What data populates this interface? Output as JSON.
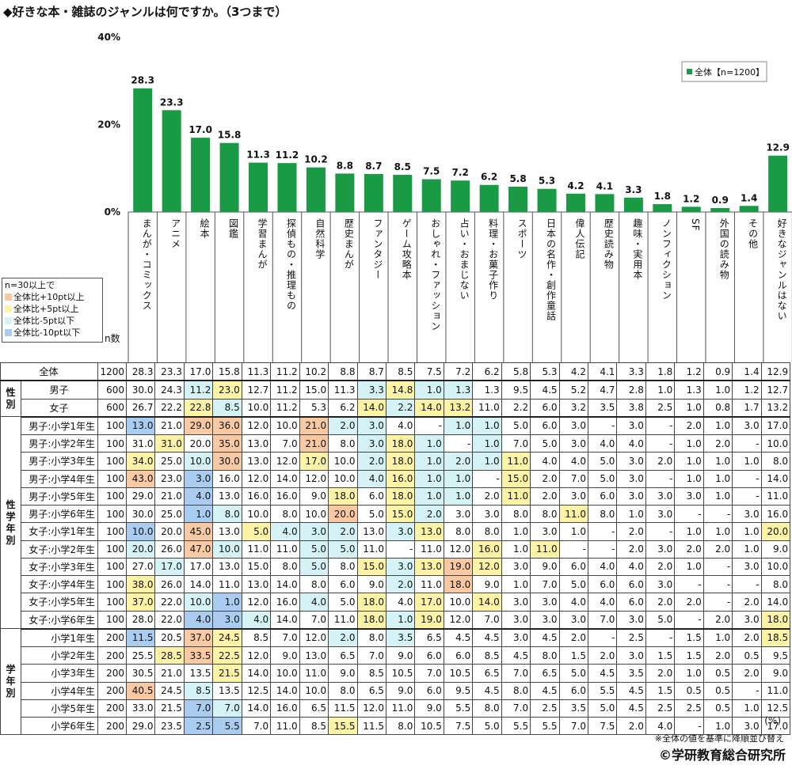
{
  "title": "◆好きな本・雑誌のジャンルは何ですか。（3つまで）",
  "legend_box": {
    "header": "n=30以上で",
    "items": [
      {
        "label": "全体比+10pt以上",
        "color": "#f8c9a3"
      },
      {
        "label": "全体比+5pt以上",
        "color": "#fdf3a6"
      },
      {
        "label": "全体比-5pt以下",
        "color": "#d5f3f7"
      },
      {
        "label": "全体比-10pt以下",
        "color": "#a9ccf0"
      }
    ]
  },
  "n_label": "n数",
  "unit": "(%)",
  "note": "※全体の値を基準に降順並び替え",
  "credit": "©学研教育総合研究所",
  "colors": {
    "bar": "#1a9a44"
  },
  "chart_data": {
    "type": "bar",
    "categories": [
      "まんが・コミックス",
      "アニメ",
      "絵本",
      "図鑑",
      "学習まんが",
      "探偵もの・推理もの",
      "自然科学",
      "歴史まんが",
      "ファンタジー",
      "ゲーム攻略本",
      "おしゃれ・ファッション",
      "占い・おまじない",
      "料理・お菓子作り",
      "スポーツ",
      "日本の名作・創作童話",
      "偉人伝記",
      "歴史読み物",
      "趣味・実用本",
      "ノンフィクション",
      "SF",
      "外国の読み物",
      "その他",
      "好きなジャンルはない"
    ],
    "series": [
      {
        "name": "全体【n=1200】",
        "values": [
          28.3,
          23.3,
          17.0,
          15.8,
          11.3,
          11.2,
          10.2,
          8.8,
          8.7,
          8.5,
          7.5,
          7.2,
          6.2,
          5.8,
          5.3,
          4.2,
          4.1,
          3.3,
          1.8,
          1.2,
          0.9,
          1.4,
          12.9
        ]
      }
    ],
    "ylim": [
      0,
      40
    ],
    "yticks": [
      "0%",
      "20%",
      "40%"
    ],
    "legend_position": "top-right",
    "value_labels": [
      "28.3",
      "23.3",
      "17.0",
      "15.8",
      "11.3",
      "11.2",
      "10.2",
      "8.8",
      "8.7",
      "8.5",
      "7.5",
      "7.2",
      "6.2",
      "5.8",
      "5.3",
      "4.2",
      "4.1",
      "3.3",
      "1.8",
      "1.2",
      "0.9",
      "1.4",
      "12.9"
    ]
  },
  "table": {
    "groups": [
      {
        "label": "",
        "rows": [
          0
        ]
      },
      {
        "label": "性\n別",
        "rows": [
          1,
          2
        ]
      },
      {
        "label": "性\n学\n年\n別",
        "rows": [
          3,
          4,
          5,
          6,
          7,
          8,
          9,
          10,
          11,
          12,
          13,
          14
        ]
      },
      {
        "label": "学\n年\n別",
        "rows": [
          15,
          16,
          17,
          18,
          19,
          20
        ]
      }
    ],
    "rows": [
      {
        "label": "全体",
        "n": "1200",
        "values": [
          "28.3",
          "23.3",
          "17.0",
          "15.8",
          "11.3",
          "11.2",
          "10.2",
          "8.8",
          "8.7",
          "8.5",
          "7.5",
          "7.2",
          "6.2",
          "5.8",
          "5.3",
          "4.2",
          "4.1",
          "3.3",
          "1.8",
          "1.2",
          "0.9",
          "1.4",
          "12.9"
        ],
        "hl": {}
      },
      {
        "label": "男子",
        "n": "600",
        "values": [
          "30.0",
          "24.3",
          "11.2",
          "23.0",
          "12.7",
          "11.2",
          "15.0",
          "11.3",
          "3.3",
          "14.8",
          "1.0",
          "1.3",
          "1.3",
          "9.5",
          "4.5",
          "5.2",
          "4.7",
          "2.8",
          "1.0",
          "1.3",
          "1.0",
          "1.2",
          "12.7"
        ],
        "hl": {
          "2": "lb",
          "3": "y",
          "8": "lb",
          "9": "y",
          "10": "lb",
          "11": "lb"
        }
      },
      {
        "label": "女子",
        "n": "600",
        "values": [
          "26.7",
          "22.2",
          "22.8",
          "8.5",
          "10.0",
          "11.2",
          "5.3",
          "6.2",
          "14.0",
          "2.2",
          "14.0",
          "13.2",
          "11.0",
          "2.2",
          "6.0",
          "3.2",
          "3.5",
          "3.8",
          "2.5",
          "1.0",
          "0.8",
          "1.7",
          "13.2"
        ],
        "hl": {
          "2": "y",
          "3": "lb",
          "8": "y",
          "9": "lb",
          "10": "y",
          "11": "y"
        }
      },
      {
        "label": "男子:小学1年生",
        "n": "100",
        "values": [
          "13.0",
          "21.0",
          "29.0",
          "36.0",
          "12.0",
          "10.0",
          "21.0",
          "2.0",
          "3.0",
          "4.0",
          "-",
          "1.0",
          "1.0",
          "5.0",
          "6.0",
          "3.0",
          "-",
          "3.0",
          "-",
          "2.0",
          "1.0",
          "3.0",
          "17.0"
        ],
        "hl": {
          "0": "b",
          "2": "o",
          "3": "o",
          "6": "o",
          "7": "lb",
          "8": "lb",
          "11": "lb",
          "12": "lb"
        }
      },
      {
        "label": "男子:小学2年生",
        "n": "100",
        "values": [
          "31.0",
          "31.0",
          "20.0",
          "35.0",
          "13.0",
          "7.0",
          "21.0",
          "8.0",
          "3.0",
          "18.0",
          "1.0",
          "-",
          "1.0",
          "7.0",
          "5.0",
          "3.0",
          "4.0",
          "4.0",
          "-",
          "1.0",
          "2.0",
          "-",
          "10.0"
        ],
        "hl": {
          "1": "y",
          "3": "o",
          "6": "o",
          "8": "lb",
          "9": "y",
          "10": "lb",
          "12": "lb"
        }
      },
      {
        "label": "男子:小学3年生",
        "n": "100",
        "values": [
          "34.0",
          "25.0",
          "10.0",
          "30.0",
          "13.0",
          "12.0",
          "17.0",
          "10.0",
          "2.0",
          "18.0",
          "1.0",
          "2.0",
          "1.0",
          "11.0",
          "4.0",
          "4.0",
          "5.0",
          "3.0",
          "2.0",
          "1.0",
          "1.0",
          "1.0",
          "8.0"
        ],
        "hl": {
          "0": "y",
          "2": "lb",
          "3": "o",
          "6": "y",
          "8": "lb",
          "9": "y",
          "10": "lb",
          "11": "lb",
          "12": "lb",
          "13": "y"
        }
      },
      {
        "label": "男子:小学4年生",
        "n": "100",
        "values": [
          "43.0",
          "23.0",
          "3.0",
          "16.0",
          "12.0",
          "14.0",
          "12.0",
          "10.0",
          "4.0",
          "16.0",
          "1.0",
          "1.0",
          "-",
          "15.0",
          "2.0",
          "7.0",
          "5.0",
          "3.0",
          "-",
          "1.0",
          "1.0",
          "-",
          "14.0"
        ],
        "hl": {
          "0": "o",
          "2": "b",
          "8": "lb",
          "9": "y",
          "10": "lb",
          "11": "lb",
          "13": "y"
        }
      },
      {
        "label": "男子:小学5年生",
        "n": "100",
        "values": [
          "29.0",
          "21.0",
          "4.0",
          "13.0",
          "16.0",
          "16.0",
          "9.0",
          "18.0",
          "6.0",
          "18.0",
          "1.0",
          "1.0",
          "2.0",
          "11.0",
          "2.0",
          "3.0",
          "6.0",
          "3.0",
          "3.0",
          "3.0",
          "1.0",
          "-",
          "11.0"
        ],
        "hl": {
          "2": "b",
          "7": "y",
          "9": "y",
          "10": "lb",
          "11": "lb",
          "13": "y"
        }
      },
      {
        "label": "男子:小学6年生",
        "n": "100",
        "values": [
          "30.0",
          "25.0",
          "1.0",
          "8.0",
          "10.0",
          "8.0",
          "10.0",
          "20.0",
          "5.0",
          "15.0",
          "2.0",
          "3.0",
          "3.0",
          "8.0",
          "8.0",
          "11.0",
          "8.0",
          "1.0",
          "3.0",
          "-",
          "-",
          "3.0",
          "16.0"
        ],
        "hl": {
          "2": "b",
          "3": "lb",
          "7": "o",
          "9": "y",
          "10": "lb",
          "15": "y"
        }
      },
      {
        "label": "女子:小学1年生",
        "n": "100",
        "values": [
          "10.0",
          "20.0",
          "45.0",
          "13.0",
          "5.0",
          "4.0",
          "3.0",
          "2.0",
          "13.0",
          "3.0",
          "13.0",
          "8.0",
          "8.0",
          "1.0",
          "3.0",
          "1.0",
          "-",
          "2.0",
          "-",
          "1.0",
          "1.0",
          "1.0",
          "20.0"
        ],
        "hl": {
          "0": "b",
          "2": "o",
          "4": "y",
          "5": "lb",
          "6": "lb",
          "7": "lb",
          "9": "lb",
          "10": "y",
          "22": "y"
        }
      },
      {
        "label": "女子:小学2年生",
        "n": "100",
        "values": [
          "20.0",
          "26.0",
          "47.0",
          "10.0",
          "11.0",
          "11.0",
          "5.0",
          "5.0",
          "11.0",
          "-",
          "11.0",
          "12.0",
          "16.0",
          "1.0",
          "11.0",
          "-",
          "-",
          "2.0",
          "3.0",
          "2.0",
          "2.0",
          "1.0",
          "9.0"
        ],
        "hl": {
          "0": "lb",
          "2": "o",
          "3": "lb",
          "6": "lb",
          "7": "lb",
          "12": "y",
          "14": "y"
        }
      },
      {
        "label": "女子:小学3年生",
        "n": "100",
        "values": [
          "27.0",
          "17.0",
          "17.0",
          "13.0",
          "15.0",
          "8.0",
          "5.0",
          "8.0",
          "15.0",
          "3.0",
          "13.0",
          "19.0",
          "12.0",
          "3.0",
          "9.0",
          "6.0",
          "4.0",
          "4.0",
          "2.0",
          "1.0",
          "-",
          "3.0",
          "10.0"
        ],
        "hl": {
          "1": "lb",
          "6": "lb",
          "8": "y",
          "9": "lb",
          "10": "y",
          "11": "o",
          "12": "y"
        }
      },
      {
        "label": "女子:小学4年生",
        "n": "100",
        "values": [
          "38.0",
          "26.0",
          "14.0",
          "11.0",
          "13.0",
          "14.0",
          "8.0",
          "6.0",
          "9.0",
          "2.0",
          "11.0",
          "18.0",
          "9.0",
          "1.0",
          "7.0",
          "5.0",
          "6.0",
          "6.0",
          "3.0",
          "-",
          "-",
          "-",
          "8.0"
        ],
        "hl": {
          "0": "y",
          "9": "lb",
          "11": "o"
        }
      },
      {
        "label": "女子:小学5年生",
        "n": "100",
        "values": [
          "37.0",
          "22.0",
          "10.0",
          "1.0",
          "12.0",
          "16.0",
          "4.0",
          "5.0",
          "18.0",
          "4.0",
          "17.0",
          "10.0",
          "14.0",
          "3.0",
          "3.0",
          "4.0",
          "4.0",
          "6.0",
          "2.0",
          "2.0",
          "-",
          "2.0",
          "14.0"
        ],
        "hl": {
          "0": "y",
          "2": "lb",
          "3": "b",
          "6": "lb",
          "8": "y",
          "10": "y",
          "12": "y"
        }
      },
      {
        "label": "女子:小学6年生",
        "n": "100",
        "values": [
          "28.0",
          "22.0",
          "4.0",
          "3.0",
          "4.0",
          "14.0",
          "7.0",
          "11.0",
          "18.0",
          "1.0",
          "19.0",
          "12.0",
          "7.0",
          "3.0",
          "3.0",
          "3.0",
          "7.0",
          "3.0",
          "5.0",
          "-",
          "2.0",
          "3.0",
          "18.0"
        ],
        "hl": {
          "2": "b",
          "3": "b",
          "4": "lb",
          "8": "y",
          "9": "lb",
          "10": "y",
          "22": "y"
        }
      },
      {
        "label": "小学1年生",
        "n": "200",
        "values": [
          "11.5",
          "20.5",
          "37.0",
          "24.5",
          "8.5",
          "7.0",
          "12.0",
          "2.0",
          "8.0",
          "3.5",
          "6.5",
          "4.5",
          "4.5",
          "3.0",
          "4.5",
          "2.0",
          "-",
          "2.5",
          "-",
          "1.5",
          "1.0",
          "2.0",
          "18.5"
        ],
        "hl": {
          "0": "b",
          "2": "o",
          "3": "y",
          "7": "lb",
          "9": "lb",
          "22": "y"
        }
      },
      {
        "label": "小学2年生",
        "n": "200",
        "values": [
          "25.5",
          "28.5",
          "33.5",
          "22.5",
          "12.0",
          "9.0",
          "13.0",
          "6.5",
          "7.0",
          "9.0",
          "6.0",
          "6.0",
          "8.5",
          "4.5",
          "8.0",
          "1.5",
          "2.0",
          "3.0",
          "1.5",
          "1.5",
          "2.0",
          "0.5",
          "9.5"
        ],
        "hl": {
          "1": "y",
          "2": "o",
          "3": "y"
        }
      },
      {
        "label": "小学3年生",
        "n": "200",
        "values": [
          "30.5",
          "21.0",
          "13.5",
          "21.5",
          "14.0",
          "10.0",
          "11.0",
          "9.0",
          "8.5",
          "10.5",
          "7.0",
          "10.5",
          "6.5",
          "7.0",
          "6.5",
          "5.0",
          "4.5",
          "3.5",
          "2.0",
          "1.0",
          "0.5",
          "2.0",
          "9.0"
        ],
        "hl": {
          "3": "y"
        }
      },
      {
        "label": "小学4年生",
        "n": "200",
        "values": [
          "40.5",
          "24.5",
          "8.5",
          "13.5",
          "12.5",
          "14.0",
          "10.0",
          "8.0",
          "6.5",
          "9.0",
          "6.0",
          "9.5",
          "4.5",
          "8.0",
          "4.5",
          "6.0",
          "5.5",
          "4.5",
          "1.5",
          "0.5",
          "0.5",
          "-",
          "11.0"
        ],
        "hl": {
          "0": "o",
          "2": "lb"
        }
      },
      {
        "label": "小学5年生",
        "n": "200",
        "values": [
          "33.0",
          "21.5",
          "7.0",
          "7.0",
          "14.0",
          "16.0",
          "6.5",
          "11.5",
          "12.0",
          "11.0",
          "9.0",
          "5.5",
          "8.0",
          "7.0",
          "2.5",
          "3.5",
          "5.0",
          "4.5",
          "2.5",
          "2.5",
          "0.5",
          "1.0",
          "12.5"
        ],
        "hl": {
          "2": "b",
          "3": "lb"
        }
      },
      {
        "label": "小学6年生",
        "n": "200",
        "values": [
          "29.0",
          "23.5",
          "2.5",
          "5.5",
          "7.0",
          "11.0",
          "8.5",
          "15.5",
          "11.5",
          "8.0",
          "10.5",
          "7.5",
          "5.0",
          "5.5",
          "5.5",
          "7.0",
          "7.5",
          "2.0",
          "4.0",
          "-",
          "1.0",
          "3.0",
          "17.0"
        ],
        "hl": {
          "2": "b",
          "3": "b",
          "7": "y"
        }
      }
    ]
  }
}
